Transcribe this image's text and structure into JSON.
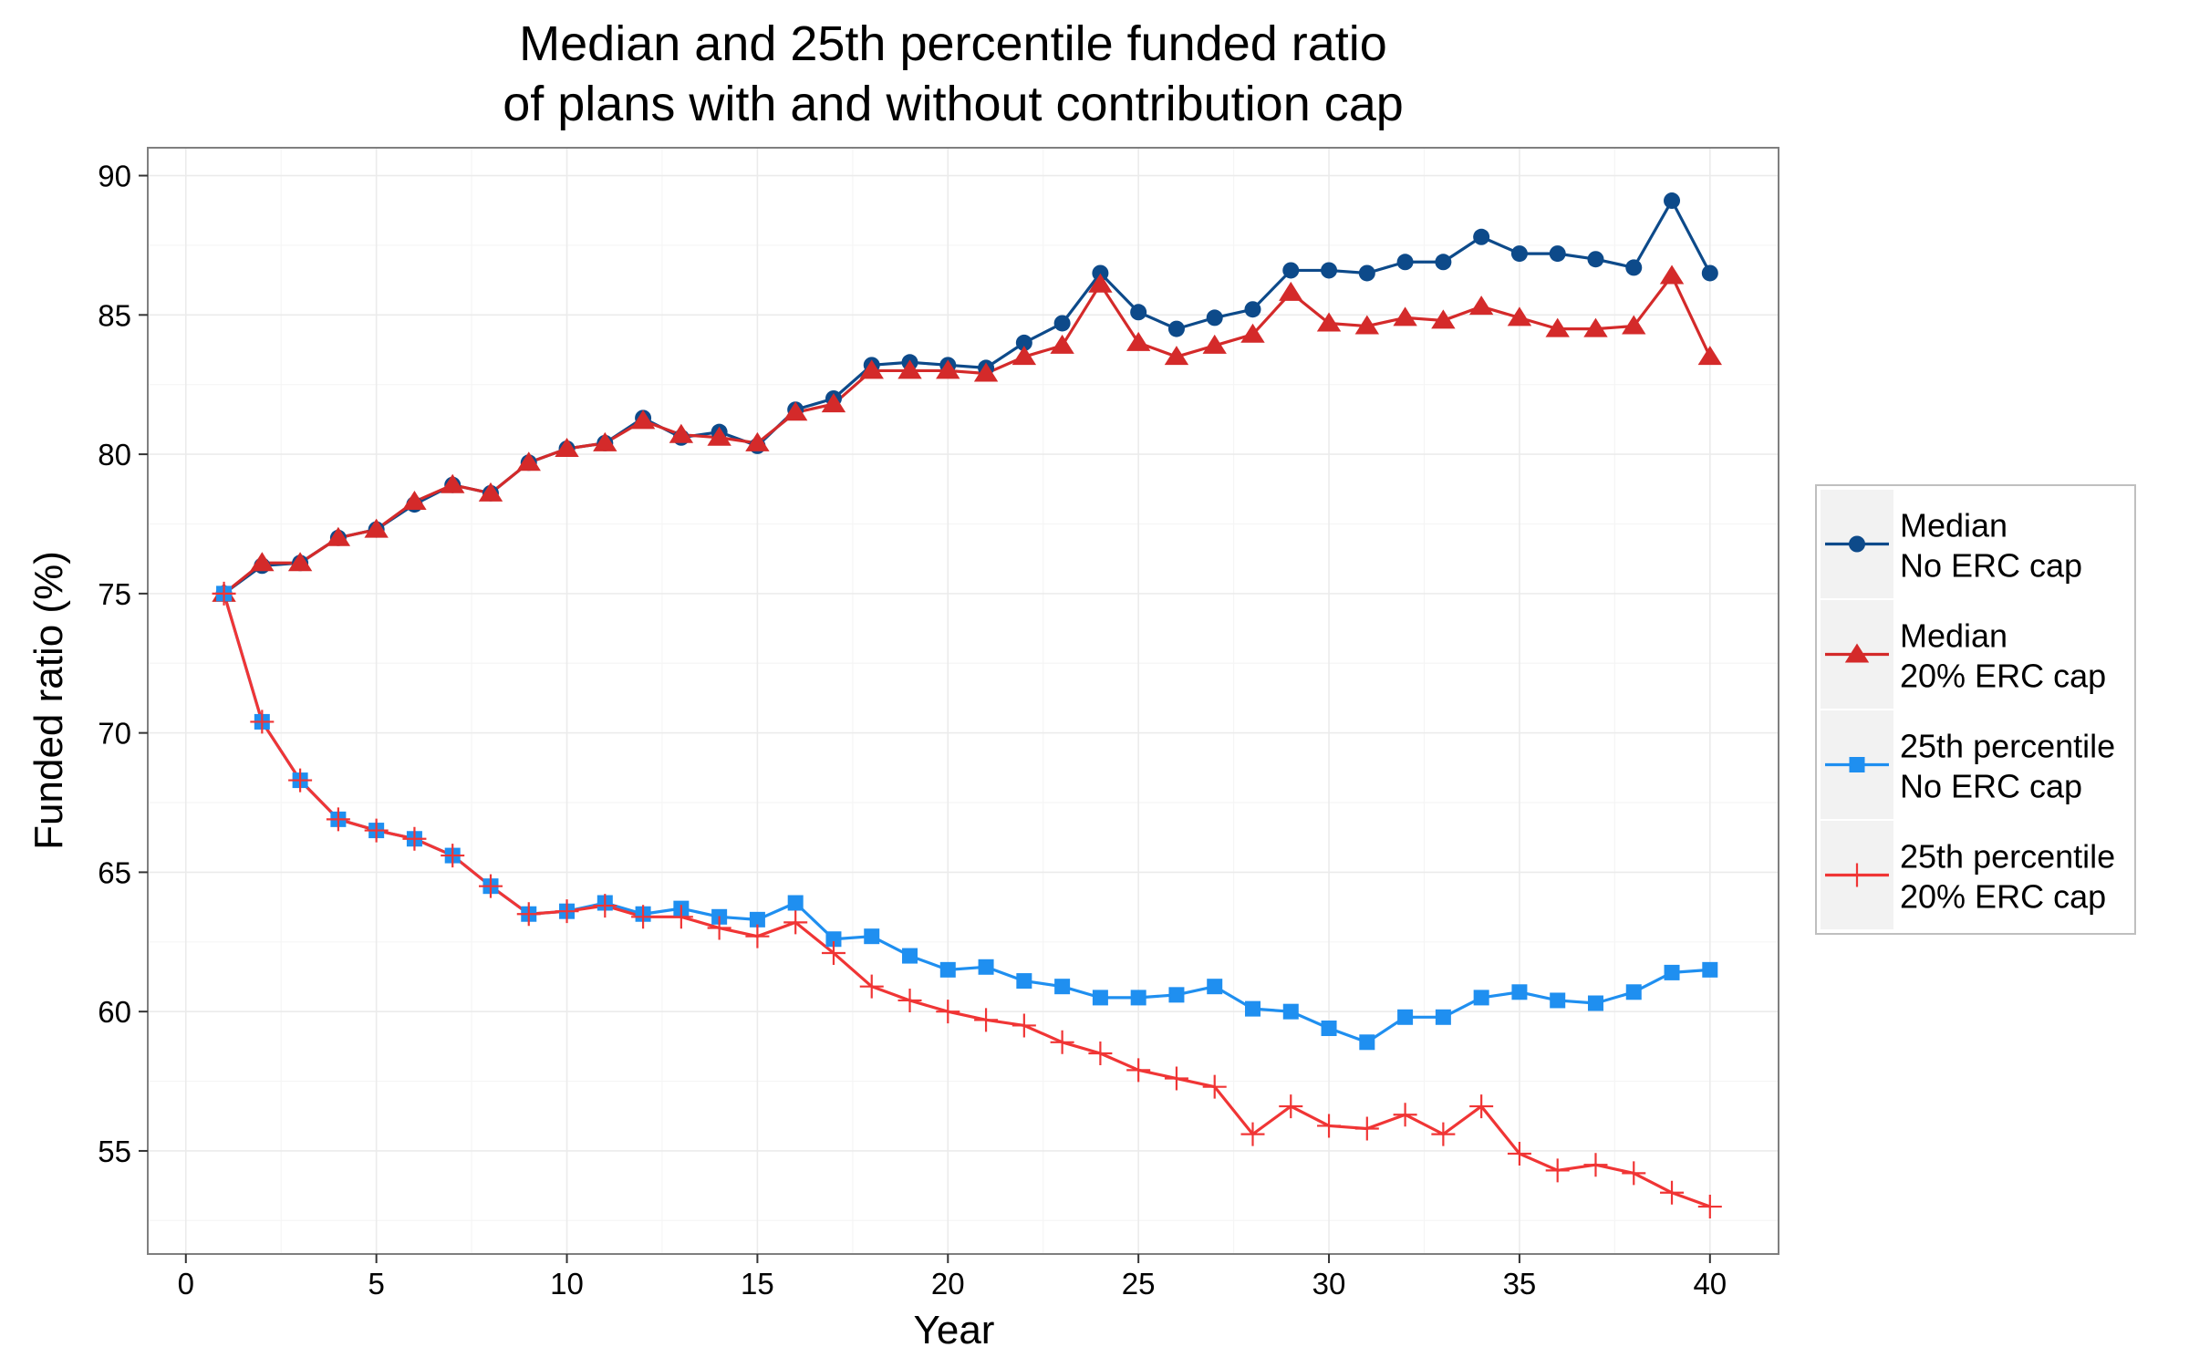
{
  "chart_data": {
    "type": "line",
    "title": [
      "Median and 25th percentile funded ratio",
      "of plans with and without contribution cap"
    ],
    "xlabel": "Year",
    "ylabel": "Funded ratio (%)",
    "xlim": [
      -1,
      41.8
    ],
    "ylim": [
      51.3,
      91
    ],
    "xticks": [
      0,
      5,
      10,
      15,
      20,
      25,
      30,
      35,
      40
    ],
    "yticks": [
      55,
      60,
      65,
      70,
      75,
      80,
      85,
      90
    ],
    "grid": true,
    "legend_position": "right",
    "x": [
      1,
      2,
      3,
      4,
      5,
      6,
      7,
      8,
      9,
      10,
      11,
      12,
      13,
      14,
      15,
      16,
      17,
      18,
      19,
      20,
      21,
      22,
      23,
      24,
      25,
      26,
      27,
      28,
      29,
      30,
      31,
      32,
      33,
      34,
      35,
      36,
      37,
      38,
      39,
      40
    ],
    "series": [
      {
        "name": "Median\nNo ERC cap",
        "color": "#0d4a8a",
        "marker": "circle",
        "values": [
          75.0,
          76.0,
          76.1,
          77.0,
          77.3,
          78.2,
          78.9,
          78.6,
          79.7,
          80.2,
          80.4,
          81.3,
          80.6,
          80.8,
          80.3,
          81.6,
          82.0,
          83.2,
          83.3,
          83.2,
          83.1,
          84.0,
          84.7,
          86.5,
          85.1,
          84.5,
          84.9,
          85.2,
          86.6,
          86.6,
          86.5,
          86.9,
          86.9,
          87.8,
          87.2,
          87.2,
          87.0,
          86.7,
          89.1,
          86.5
        ]
      },
      {
        "name": "Median\n20% ERC cap",
        "color": "#d42a2a",
        "marker": "triangle",
        "values": [
          75.0,
          76.1,
          76.1,
          77.0,
          77.3,
          78.3,
          78.9,
          78.6,
          79.7,
          80.2,
          80.4,
          81.2,
          80.7,
          80.6,
          80.4,
          81.5,
          81.8,
          83.0,
          83.0,
          83.0,
          82.9,
          83.5,
          83.9,
          86.1,
          84.0,
          83.5,
          83.9,
          84.3,
          85.8,
          84.7,
          84.6,
          84.9,
          84.8,
          85.3,
          84.9,
          84.5,
          84.5,
          84.6,
          86.4,
          83.5
        ]
      },
      {
        "name": "25th percentile\nNo ERC cap",
        "color": "#1f8ff0",
        "marker": "square",
        "values": [
          75.0,
          70.4,
          68.3,
          66.9,
          66.5,
          66.2,
          65.6,
          64.5,
          63.5,
          63.6,
          63.9,
          63.5,
          63.7,
          63.4,
          63.3,
          63.9,
          62.6,
          62.7,
          62.0,
          61.5,
          61.6,
          61.1,
          60.9,
          60.5,
          60.5,
          60.6,
          60.9,
          60.1,
          60.0,
          59.4,
          58.9,
          59.8,
          59.8,
          60.5,
          60.7,
          60.4,
          60.3,
          60.7,
          61.4,
          61.5
        ]
      },
      {
        "name": "25th percentile\n20% ERC cap",
        "color": "#f03535",
        "marker": "plus",
        "values": [
          75.0,
          70.4,
          68.3,
          66.9,
          66.5,
          66.2,
          65.6,
          64.5,
          63.5,
          63.6,
          63.8,
          63.4,
          63.4,
          63.0,
          62.7,
          63.2,
          62.1,
          60.9,
          60.4,
          60.0,
          59.7,
          59.5,
          58.9,
          58.5,
          57.9,
          57.6,
          57.3,
          55.6,
          56.6,
          55.9,
          55.8,
          56.3,
          55.6,
          56.6,
          54.9,
          54.3,
          54.5,
          54.2,
          53.5,
          53.0
        ]
      }
    ]
  }
}
